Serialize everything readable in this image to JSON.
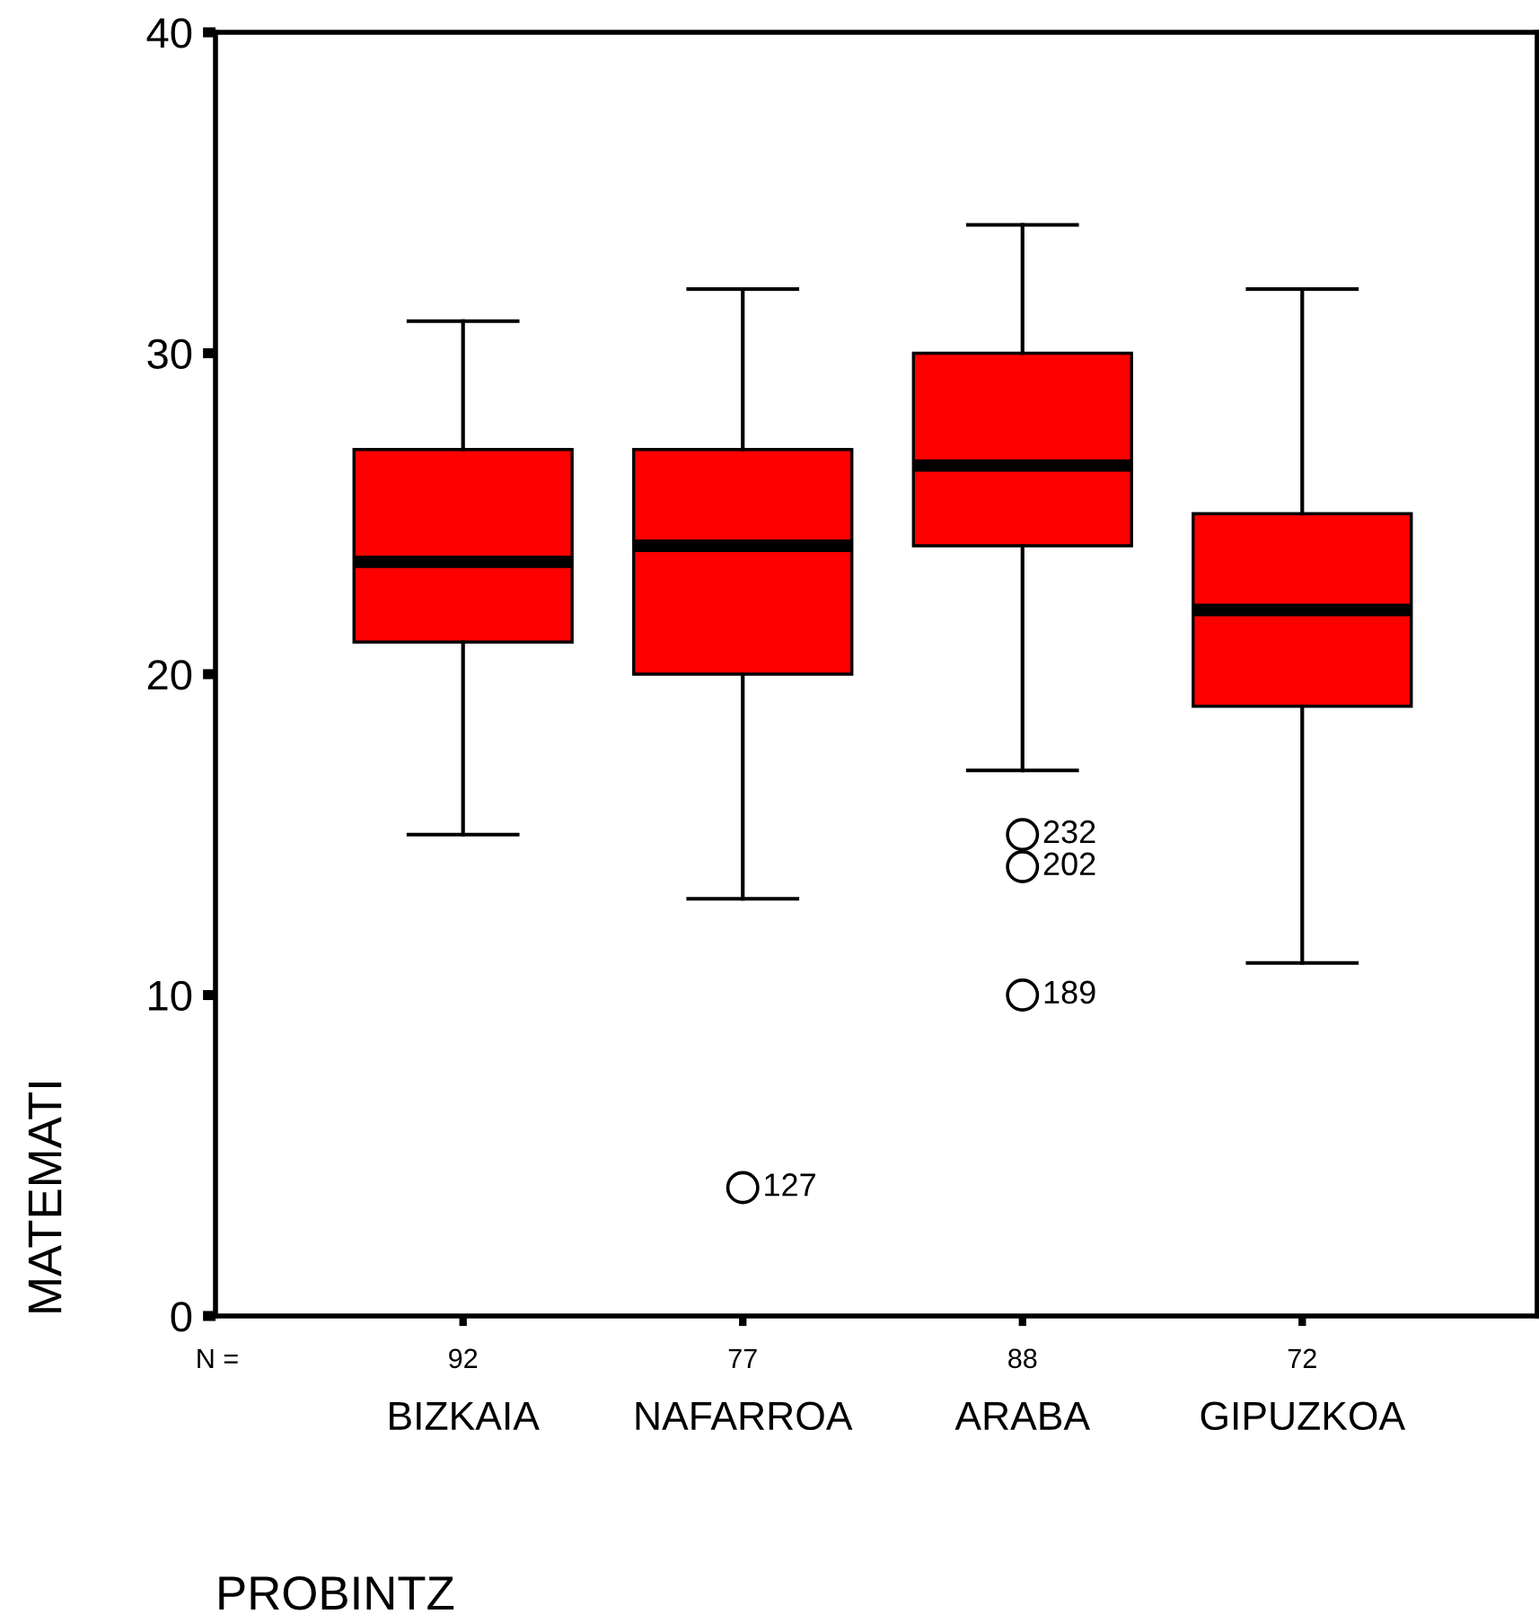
{
  "chart_data": {
    "type": "box",
    "xlabel": "PROBINTZ",
    "ylabel": "MATEMATI",
    "categories": [
      "BIZKAIA",
      "NAFARROA",
      "ARABA",
      "GIPUZKOA"
    ],
    "boxes": [
      {
        "low": 15,
        "q1": 21,
        "median": 23.5,
        "q3": 27,
        "high": 31
      },
      {
        "low": 13,
        "q1": 20,
        "median": 24,
        "q3": 27,
        "high": 32,
        "outliers": [
          4
        ]
      },
      {
        "low": 17,
        "q1": 24,
        "median": 26.5,
        "q3": 30,
        "high": 34,
        "outliers": [
          15,
          14,
          10
        ]
      },
      {
        "low": 11,
        "q1": 19,
        "median": 22,
        "q3": 25,
        "high": 32
      }
    ],
    "color": "#ff0000",
    "ylim": [
      0,
      40
    ],
    "yticks": [
      0,
      10,
      20,
      30,
      40
    ],
    "grid": false,
    "legend": false,
    "annotations": [
      "N =",
      "92",
      "77",
      "88",
      "72",
      "127",
      "232",
      "202",
      "189"
    ]
  }
}
